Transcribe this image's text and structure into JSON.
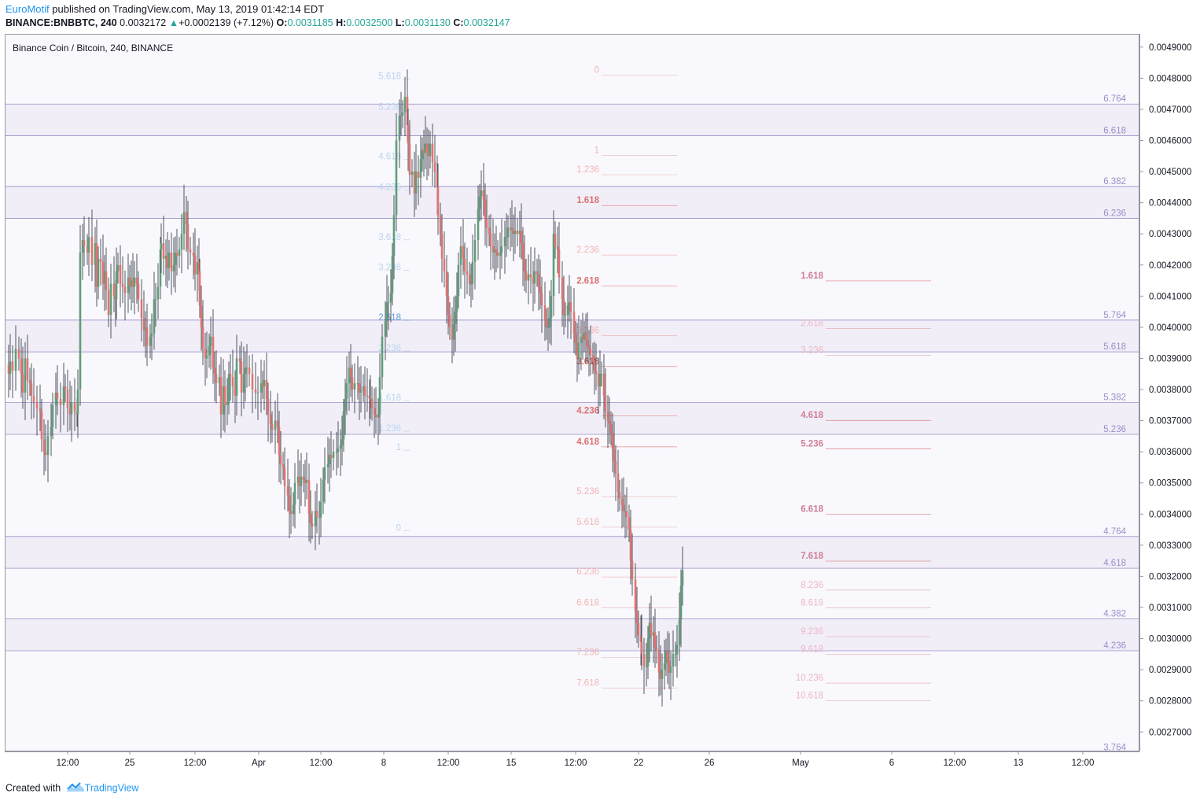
{
  "header": {
    "author": "EuroMotif",
    "published_text": "published on TradingView.com, May 13, 2019 01:42:14 EDT",
    "symbol": "BINANCE:BNBBTC, 240",
    "last": "0.0032172",
    "change": "+0.0002139 (+7.12%)",
    "open_label": "O:",
    "open": "0.0031185",
    "high_label": "H:",
    "high": "0.0032500",
    "low_label": "L:",
    "low": "0.0031130",
    "close_label": "C:",
    "close": "0.0032147"
  },
  "footer": {
    "created_with": "Created with",
    "brand": "TradingView"
  },
  "colors": {
    "up": "#5f9e78",
    "down": "#e07470",
    "grid_band": "#f1eef8",
    "fib_purple": "#8f84c0",
    "fib_blue": "#7fb3df",
    "fib_red": "#e58c8c",
    "background": "#f9f8fd"
  },
  "chart_data": {
    "type": "candlestick",
    "title": "Binance Coin / Bitcoin, 240, BINANCE",
    "y_range": [
      0.00264,
      0.00494
    ],
    "y_ticks": [
      "0.0049000",
      "0.0048000",
      "0.0047000",
      "0.0046000",
      "0.0045000",
      "0.0044000",
      "0.0043000",
      "0.0042000",
      "0.0041000",
      "0.0040000",
      "0.0039000",
      "0.0038000",
      "0.0037000",
      "0.0036000",
      "0.0035000",
      "0.0034000",
      "0.0033000",
      "0.0032000",
      "0.0031000",
      "0.0030000",
      "0.0029000",
      "0.0028000",
      "0.0027000"
    ],
    "x_ticks": [
      "12:00",
      "25",
      "12:00",
      "Apr",
      "12:00",
      "8",
      "12:00",
      "15",
      "12:00",
      "22",
      "26",
      "May",
      "6",
      "12:00",
      "13",
      "12:00"
    ],
    "path_x": [
      0,
      4,
      6,
      9,
      13,
      17,
      20,
      22,
      25,
      28,
      31,
      33,
      36,
      40,
      44,
      46,
      49,
      51,
      54,
      58,
      60,
      64,
      66,
      70,
      74,
      76,
      79,
      82,
      84,
      88,
      91,
      92,
      95,
      98,
      100,
      104,
      106,
      110,
      114,
      116,
      118,
      121,
      124,
      126,
      128,
      131,
      134,
      138,
      140,
      141,
      143,
      146,
      149,
      152,
      156,
      158,
      160,
      162,
      164,
      167,
      169,
      173,
      176,
      178,
      180,
      184,
      186,
      189,
      191,
      194,
      197,
      198,
      201,
      204,
      206,
      208,
      211,
      214,
      216,
      218,
      221,
      224,
      227,
      230,
      232,
      235,
      239,
      241,
      244,
      246,
      247,
      249,
      251,
      254,
      256,
      259,
      261,
      264,
      266,
      268,
      272,
      274,
      277,
      279,
      282,
      284,
      286,
      289,
      292,
      294,
      298,
      300,
      303,
      305,
      307,
      310,
      314,
      318,
      321,
      325,
      327,
      329,
      332,
      334,
      337,
      339,
      343,
      346,
      348,
      350,
      353,
      355,
      359,
      361,
      363,
      366,
      368,
      372,
      374,
      376,
      379,
      381,
      383,
      386,
      388,
      390,
      394,
      396,
      399,
      401,
      404,
      406,
      410,
      412,
      414,
      417,
      421,
      423,
      426,
      428,
      430,
      432,
      434,
      437,
      439,
      441,
      444,
      448,
      450,
      452,
      455,
      457,
      460,
      463,
      464,
      466,
      469,
      471,
      474,
      476,
      479,
      483,
      485,
      487,
      490,
      492,
      494,
      497,
      501,
      503,
      505,
      508,
      511,
      512,
      514,
      517,
      520,
      522,
      525,
      528,
      530,
      532,
      534,
      536,
      538,
      540,
      543,
      546,
      549,
      550,
      553,
      555,
      558,
      561,
      563,
      565,
      568,
      570,
      572,
      574,
      576,
      579,
      582,
      584,
      587,
      590,
      592,
      594,
      597,
      601,
      603,
      605,
      608,
      610,
      612,
      615,
      617,
      620,
      622,
      624,
      626,
      629,
      631,
      635,
      637,
      639,
      642,
      644,
      646,
      648,
      651,
      654,
      656,
      658,
      660,
      662,
      665,
      668,
      671,
      673,
      676,
      678,
      680,
      682,
      686,
      688,
      690,
      692,
      694,
      697,
      699,
      702,
      704,
      708,
      710,
      712,
      715,
      717,
      719,
      723,
      725,
      727,
      729,
      732,
      734,
      736,
      738,
      740,
      742,
      744,
      747,
      749,
      751,
      754,
      756,
      758,
      761,
      763,
      766,
      768,
      770,
      772,
      774,
      776,
      779,
      781,
      784,
      786,
      788,
      790,
      793,
      795,
      797,
      801,
      803,
      805,
      808,
      809,
      812,
      815,
      817,
      819,
      821,
      824,
      826,
      828,
      831,
      833,
      835,
      838,
      840,
      842,
      844,
      846,
      849,
      852,
      854,
      857,
      859,
      861,
      864,
      866,
      869,
      872,
      874,
      877,
      879,
      882,
      884,
      886,
      888,
      891,
      893,
      896,
      898,
      900,
      903,
      905,
      908,
      910,
      913,
      914,
      917,
      920,
      922,
      925,
      927,
      929,
      932,
      935,
      937,
      939,
      942,
      944,
      946,
      949,
      951,
      954,
      956,
      958,
      960,
      962,
      965,
      967,
      969,
      971,
      974,
      977,
      979,
      982,
      984,
      986,
      989,
      991,
      993,
      995,
      998,
      1000,
      1003,
      1005,
      1008,
      1010,
      1012,
      1015,
      1017,
      1020,
      1022,
      1025,
      1027,
      1029,
      1032,
      1034,
      1036,
      1038,
      1041,
      1044,
      1046,
      1049,
      1050,
      1052,
      1055,
      1058,
      1060,
      1062,
      1065,
      1067,
      1069,
      1072,
      1074,
      1076,
      1079,
      1081,
      1084,
      1086,
      1088,
      1091,
      1093,
      1095,
      1098,
      1101,
      1103,
      1105,
      1108,
      1110,
      1113,
      1115,
      1117,
      1119,
      1122,
      1124,
      1127,
      1129,
      1131,
      1133,
      1136,
      1138,
      1141,
      1143,
      1146,
      1148,
      1150,
      1153,
      1155,
      1157,
      1159,
      1162,
      1165,
      1167,
      1169,
      1172,
      1174,
      1177,
      1179,
      1181,
      1183,
      1186,
      1188,
      1191,
      1193,
      1196,
      1198,
      1200,
      1203,
      1205,
      1207,
      1210,
      1212,
      1214,
      1217,
      1219,
      1222,
      1224,
      1226,
      1229,
      1231,
      1234,
      1236,
      1238,
      1241,
      1243,
      1245,
      1248,
      1250,
      1253,
      1255,
      1257,
      1260,
      1262,
      1264,
      1267,
      1269,
      1272,
      1274,
      1277,
      1279,
      1281,
      1284,
      1286,
      1288,
      1290
    ],
    "path_y": [
      0.00388,
      0.00385,
      0.00389,
      0.00386,
      0.00393,
      0.0039,
      0.00385,
      0.00379,
      0.0039,
      0.00383,
      0.00382,
      0.00378,
      0.00376,
      0.00374,
      0.00373,
      0.00364,
      0.0036,
      0.00359,
      0.00365,
      0.00368,
      0.00375,
      0.00379,
      0.00377,
      0.00375,
      0.00381,
      0.0038,
      0.00374,
      0.00372,
      0.00376,
      0.00373,
      0.00372,
      0.0038,
      0.00424,
      0.00428,
      0.00426,
      0.00424,
      0.00429,
      0.0042,
      0.00427,
      0.00413,
      0.00422,
      0.00421,
      0.00414,
      0.00418,
      0.00412,
      0.00404,
      0.00414,
      0.0041,
      0.00409,
      0.00418,
      0.0042,
      0.00414,
      0.00413,
      0.00411,
      0.00416,
      0.00413,
      0.00415,
      0.00413,
      0.00416,
      0.00414,
      0.00409,
      0.00403,
      0.00399,
      0.004,
      0.00394,
      0.00397,
      0.00398,
      0.00409,
      0.00409,
      0.00413,
      0.00425,
      0.00427,
      0.00422,
      0.00423,
      0.00419,
      0.00424,
      0.00418,
      0.0042,
      0.00424,
      0.00423,
      0.00425,
      0.0043,
      0.00437,
      0.00433,
      0.00425,
      0.00424,
      0.00423,
      0.00417,
      0.00421,
      0.00418,
      0.00407,
      0.004,
      0.00393,
      0.0039,
      0.00391,
      0.00394,
      0.00397,
      0.00387,
      0.00385,
      0.00382,
      0.00384,
      0.00372,
      0.00381,
      0.00375,
      0.00376,
      0.00385,
      0.00384,
      0.00381,
      0.00378,
      0.0039,
      0.00389,
      0.00379,
      0.00385,
      0.00387,
      0.00387,
      0.00385,
      0.0038,
      0.00379,
      0.00379,
      0.00382,
      0.00381,
      0.00383,
      0.00377,
      0.00372,
      0.00369,
      0.00367,
      0.0037,
      0.00368,
      0.00359,
      0.00356,
      0.00355,
      0.00349,
      0.00346,
      0.00341,
      0.0034,
      0.00343,
      0.0035,
      0.00352,
      0.00349,
      0.00352,
      0.00351,
      0.0035,
      0.00351,
      0.0034,
      0.00337,
      0.00336,
      0.00341,
      0.00339,
      0.00339,
      0.00344,
      0.00351,
      0.00355,
      0.00356,
      0.00359,
      0.00358,
      0.0036,
      0.0036,
      0.00361,
      0.00362,
      0.00364,
      0.00373,
      0.00377,
      0.00382,
      0.00387,
      0.00384,
      0.0038,
      0.00382,
      0.00382,
      0.00379,
      0.0038,
      0.00381,
      0.00378,
      0.00378,
      0.00377,
      0.00377,
      0.00374,
      0.00372,
      0.00371,
      0.00372,
      0.00384,
      0.00397,
      0.00402,
      0.00408,
      0.00408,
      0.00411,
      0.00423,
      0.00436,
      0.0046,
      0.00468,
      0.00468,
      0.00469,
      0.00474,
      0.00465,
      0.00459,
      0.00449,
      0.0045,
      0.00443,
      0.0045,
      0.00448,
      0.00454,
      0.00457,
      0.00456,
      0.00459,
      0.00456,
      0.00455,
      0.00459,
      0.00453,
      0.0045,
      0.00445,
      0.00436,
      0.0043,
      0.00422,
      0.00418,
      0.0041,
      0.00404,
      0.004,
      0.00396,
      0.00401,
      0.00405,
      0.0041,
      0.0042,
      0.00426,
      0.00422,
      0.00418,
      0.00417,
      0.00414,
      0.00414,
      0.00421,
      0.00428,
      0.00438,
      0.00442,
      0.00444,
      0.00441,
      0.00435,
      0.00432,
      0.0043,
      0.00426,
      0.00424,
      0.00425,
      0.00424,
      0.00423,
      0.00424,
      0.00426,
      0.00429,
      0.00429,
      0.00432,
      0.00432,
      0.00431,
      0.0043,
      0.00431,
      0.0043,
      0.00431,
      0.00427,
      0.00422,
      0.00418,
      0.00415,
      0.00417,
      0.00416,
      0.00414,
      0.00418,
      0.00417,
      0.00413,
      0.00411,
      0.00407,
      0.00402,
      0.004,
      0.004,
      0.00403,
      0.0041,
      0.0043,
      0.00426,
      0.00425,
      0.00416,
      0.00409,
      0.00404,
      0.00404,
      0.00407,
      0.00408,
      0.00405,
      0.00398,
      0.00395,
      0.0039,
      0.00395,
      0.00397,
      0.00396,
      0.00398,
      0.00396,
      0.00394,
      0.00393,
      0.00391,
      0.00389,
      0.00386,
      0.00385,
      0.00381,
      0.00385,
      0.00385,
      0.00378,
      0.00373,
      0.0037,
      0.00369,
      0.00366,
      0.00361,
      0.00357,
      0.00353,
      0.00347,
      0.00345,
      0.00343,
      0.00341,
      0.00341,
      0.00339,
      0.00335,
      0.00325,
      0.00319,
      0.00309,
      0.00305,
      0.00301,
      0.00299,
      0.00295,
      0.00291,
      0.00291,
      0.003,
      0.00305,
      0.00301,
      0.00302,
      0.00297,
      0.00296,
      0.00289,
      0.00287,
      0.0029,
      0.00292,
      0.00296,
      0.00293,
      0.00289,
      0.00291,
      0.00295,
      0.00295,
      0.00298,
      0.00306,
      0.00317,
      0.00322
    ],
    "fib_levels": {
      "purple_right": [
        {
          "label": "6.764",
          "y": 0.004717
        },
        {
          "label": "6.618",
          "y": 0.004615
        },
        {
          "label": "6.382",
          "y": 0.004452
        },
        {
          "label": "6.236",
          "y": 0.00435
        },
        {
          "label": "5.764",
          "y": 0.004023
        },
        {
          "label": "5.618",
          "y": 0.003921
        },
        {
          "label": "5.382",
          "y": 0.003758
        },
        {
          "label": "5.236",
          "y": 0.003656
        },
        {
          "label": "4.764",
          "y": 0.003328
        },
        {
          "label": "4.618",
          "y": 0.003226
        },
        {
          "label": "4.382",
          "y": 0.003063
        },
        {
          "label": "4.236",
          "y": 0.002961
        },
        {
          "label": "3.764",
          "y": 0.002634
        }
      ],
      "blue_left": [
        {
          "label": "5.618",
          "y": 0.004807
        },
        {
          "label": "5.236",
          "y": 0.004709
        },
        {
          "label": "4.618",
          "y": 0.004549
        },
        {
          "label": "4.236",
          "y": 0.004451
        },
        {
          "label": "3.618",
          "y": 0.004291
        },
        {
          "label": "3.236",
          "y": 0.004193
        },
        {
          "label": "2.618",
          "y": 0.004033
        },
        {
          "label": "2.236",
          "y": 0.003934
        },
        {
          "label": "1.618",
          "y": 0.003775
        },
        {
          "label": "1.236",
          "y": 0.003676
        },
        {
          "label": "1",
          "y": 0.003615
        },
        {
          "label": "0",
          "y": 0.003357
        }
      ],
      "red_middle": [
        {
          "label": "0",
          "y": 0.00481
        },
        {
          "label": "1",
          "y": 0.004552
        },
        {
          "label": "1.236",
          "y": 0.00449
        },
        {
          "label": "1.618",
          "y": 0.004391
        },
        {
          "label": "2.236",
          "y": 0.004232
        },
        {
          "label": "2.618",
          "y": 0.004133
        },
        {
          "label": "3.236",
          "y": 0.003973
        },
        {
          "label": "3.618",
          "y": 0.003874
        },
        {
          "label": "4.236",
          "y": 0.003715
        },
        {
          "label": "4.618",
          "y": 0.003616
        },
        {
          "label": "5.236",
          "y": 0.003456
        },
        {
          "label": "5.618",
          "y": 0.003358
        },
        {
          "label": "6.236",
          "y": 0.003198
        },
        {
          "label": "6.618",
          "y": 0.003099
        },
        {
          "label": "7.236",
          "y": 0.002939
        },
        {
          "label": "7.618",
          "y": 0.002841
        }
      ],
      "red_right": [
        {
          "label": "1.618",
          "y": 0.004149
        },
        {
          "label": "2.618",
          "y": 0.003996
        },
        {
          "label": "3.236",
          "y": 0.00391
        },
        {
          "label": "4.618",
          "y": 0.003701
        },
        {
          "label": "5.236",
          "y": 0.003609
        },
        {
          "label": "6.618",
          "y": 0.0034
        },
        {
          "label": "7.618",
          "y": 0.003249
        },
        {
          "label": "8.236",
          "y": 0.003156
        },
        {
          "label": "8.618",
          "y": 0.003099
        },
        {
          "label": "9.236",
          "y": 0.003006
        },
        {
          "label": "9.618",
          "y": 0.002949
        },
        {
          "label": "10.236",
          "y": 0.002857
        },
        {
          "label": "10.618",
          "y": 0.002801
        }
      ]
    },
    "grid": false,
    "legend": "none"
  }
}
